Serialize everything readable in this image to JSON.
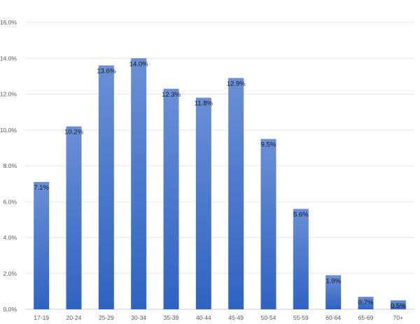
{
  "chart_data": {
    "type": "bar",
    "title": "",
    "xlabel": "",
    "ylabel": "",
    "categories": [
      "17-19",
      "20-24",
      "25-29",
      "30-34",
      "35-39",
      "40-44",
      "45-49",
      "50-54",
      "55-59",
      "60-64",
      "65-69",
      "70+"
    ],
    "values": [
      7.1,
      10.2,
      13.6,
      14.0,
      12.3,
      11.8,
      12.9,
      9.5,
      5.6,
      1.9,
      0.7,
      0.5
    ],
    "data_labels": [
      "7.1%",
      "10.2%",
      "13.6%",
      "14.0%",
      "12.3%",
      "11.8%",
      "12.9%",
      "9.5%",
      "5.6%",
      "1.9%",
      "0.7%",
      "0.5%"
    ],
    "ylim": [
      0,
      16
    ],
    "y_ticks": [
      0,
      2,
      4,
      6,
      8,
      10,
      12,
      14,
      16
    ],
    "y_tick_labels": [
      "0.0%",
      "2.0%",
      "4.0%",
      "6.0%",
      "8.0%",
      "10.0%",
      "12.0%",
      "14.0%",
      "16.0%"
    ],
    "grid": true,
    "legend": "none",
    "colors": {
      "bar_top": "#6a8fd6",
      "bar_bottom": "#2f63c2",
      "grid": "#e6e6e6"
    }
  }
}
